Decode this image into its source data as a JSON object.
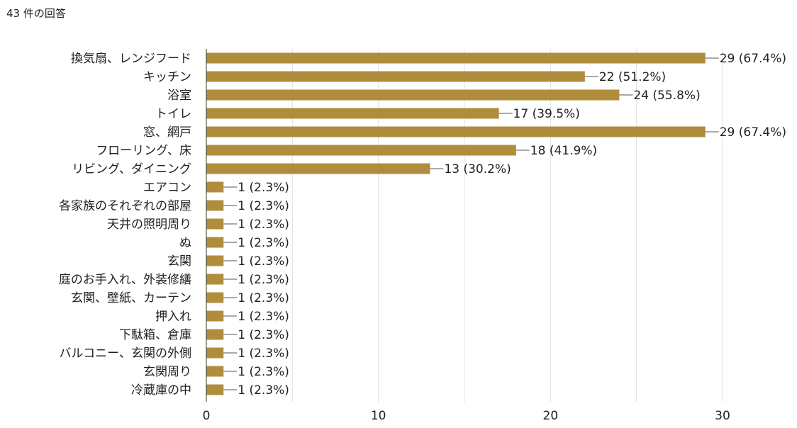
{
  "header": {
    "response_count": "43 件の回答"
  },
  "colors": {
    "bar": "#b08d3d",
    "grid": "#e0e0e0",
    "axis": "#333333",
    "text": "#202124"
  },
  "chart_data": {
    "type": "bar",
    "orientation": "horizontal",
    "categories": [
      "換気扇、レンジフード",
      "キッチン",
      "浴室",
      "トイレ",
      "窓、網戸",
      "フローリング、床",
      "リビング、ダイニング",
      "エアコン",
      "各家族のそれぞれの部屋",
      "天井の照明周り",
      "ぬ",
      "玄関",
      "庭のお手入れ、外装修繕",
      "玄関、壁紙、カーテン",
      "押入れ",
      "下駄箱、倉庫",
      "バルコニー、玄関の外側",
      "玄関周り",
      "冷蔵庫の中"
    ],
    "values": [
      29,
      22,
      24,
      17,
      29,
      18,
      13,
      1,
      1,
      1,
      1,
      1,
      1,
      1,
      1,
      1,
      1,
      1,
      1
    ],
    "value_labels": [
      "29 (67.4%)",
      "22 (51.2%)",
      "24 (55.8%)",
      "17 (39.5%)",
      "29 (67.4%)",
      "18 (41.9%)",
      "13 (30.2%)",
      "1 (2.3%)",
      "1 (2.3%)",
      "1 (2.3%)",
      "1 (2.3%)",
      "1 (2.3%)",
      "1 (2.3%)",
      "1 (2.3%)",
      "1 (2.3%)",
      "1 (2.3%)",
      "1 (2.3%)",
      "1 (2.3%)",
      "1 (2.3%)"
    ],
    "xlim": [
      0,
      30
    ],
    "x_ticks": [
      0,
      10,
      20,
      30
    ],
    "grid": true,
    "legend": "none"
  }
}
